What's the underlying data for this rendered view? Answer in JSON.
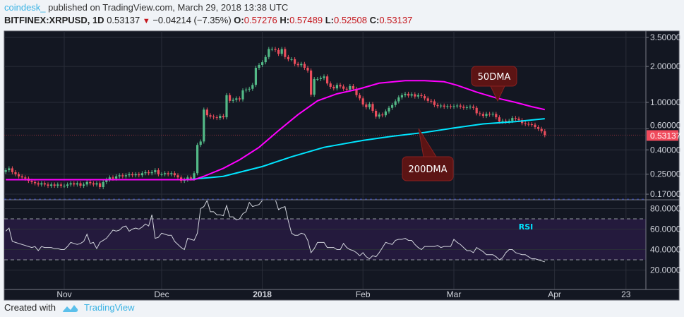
{
  "header": {
    "author": "coindesk_",
    "published": "published on TradingView.com, March 29, 2018 13:38 UTC",
    "symbol": "BITFINEX:XRPUSD, 1D",
    "last": "0.53137",
    "change": "−0.04214 (−7.35%)",
    "o_label": "O:",
    "o": "0.57276",
    "h_label": "H:",
    "h": "0.57489",
    "l_label": "L:",
    "l": "0.52508",
    "c_label": "C:",
    "c": "0.53137"
  },
  "footer": {
    "created_with": "Created with",
    "brand": "TradingView",
    "logo_icon": "tradingview-cloud-icon"
  },
  "colors": {
    "background": "#131722",
    "up": "#53b987",
    "down": "#eb4d5c",
    "ma50": "#ff00ff",
    "ma200": "#00e5ff",
    "rsi": "#d1d4dc",
    "rsi_band": "#241a3d",
    "annotation": "#5c1414",
    "last_price": "#f04a5c"
  },
  "chart_data": {
    "type": "candlestick",
    "price_scale": "log",
    "price_ticks": [
      "3.50000",
      "2.00000",
      "1.00000",
      "0.60000",
      "0.40000",
      "0.25000",
      "0.17000"
    ],
    "last_price_label": "0.53137",
    "time_ticks": [
      {
        "label": "Nov",
        "date": "2017-11-01",
        "bold": false
      },
      {
        "label": "Dec",
        "date": "2017-12-01",
        "bold": false
      },
      {
        "label": "2018",
        "date": "2018-01-01",
        "bold": true
      },
      {
        "label": "Feb",
        "date": "2018-02-01",
        "bold": false
      },
      {
        "label": "Mar",
        "date": "2018-03-01",
        "bold": false
      },
      {
        "label": "Apr",
        "date": "2018-04-01",
        "bold": false
      },
      {
        "label": "23",
        "date": "2018-04-23",
        "bold": false
      }
    ],
    "daily": [
      {
        "month": "2017-10",
        "first_day": 14,
        "close": [
          0.27,
          0.28,
          0.26,
          0.25,
          0.24,
          0.235,
          0.23,
          0.22,
          0.215,
          0.21,
          0.205,
          0.21,
          0.205,
          0.2,
          0.205,
          0.2,
          0.205,
          0.2
        ],
        "rsi": [
          58,
          61,
          48,
          47,
          46,
          45,
          44,
          43,
          42,
          43,
          39,
          43,
          42,
          42,
          42,
          41,
          41,
          40
        ]
      },
      {
        "month": "2017-11",
        "first_day": 1,
        "close": [
          0.2,
          0.205,
          0.21,
          0.205,
          0.21,
          0.2,
          0.205,
          0.215,
          0.21,
          0.205,
          0.21,
          0.195,
          0.215,
          0.225,
          0.235,
          0.23,
          0.24,
          0.245,
          0.24,
          0.245,
          0.25,
          0.245,
          0.25,
          0.245,
          0.255,
          0.26,
          0.255,
          0.26,
          0.27,
          0.25
        ],
        "rsi": [
          40,
          43,
          47,
          46,
          45,
          46,
          48,
          55,
          46,
          47,
          41,
          47,
          49,
          51,
          55,
          59,
          58,
          59,
          62,
          63,
          58,
          60,
          61,
          60,
          62,
          65,
          63,
          74,
          51,
          52
        ]
      },
      {
        "month": "2017-12",
        "first_day": 1,
        "close": [
          0.25,
          0.255,
          0.25,
          0.255,
          0.245,
          0.235,
          0.22,
          0.225,
          0.235,
          0.23,
          0.255,
          0.44,
          0.47,
          0.87,
          0.78,
          0.76,
          0.75,
          0.74,
          0.77,
          0.75,
          1.15,
          1.03,
          1.05,
          1.08,
          1.06,
          1.26,
          1.28,
          1.3,
          1.4,
          1.95,
          2.06
        ],
        "rsi": [
          56,
          55,
          54,
          54,
          48,
          45,
          42,
          40,
          51,
          50,
          49,
          56,
          80,
          82,
          88,
          77,
          77,
          74,
          74,
          73,
          83,
          72,
          72,
          69,
          70,
          75,
          77,
          86,
          82,
          83,
          84
        ]
      },
      {
        "month": "2018-01",
        "first_day": 1,
        "close": [
          2.17,
          2.4,
          2.8,
          2.8,
          2.75,
          2.55,
          2.8,
          2.4,
          2.3,
          2.3,
          2.1,
          2.05,
          2.1,
          1.95,
          1.85,
          1.16,
          1.57,
          1.57,
          1.6,
          1.65,
          1.44,
          1.35,
          1.31,
          1.4,
          1.36,
          1.3,
          1.28,
          1.37,
          1.3,
          1.15,
          1.08
        ],
        "rsi": [
          88,
          89,
          90,
          90,
          89,
          79,
          81,
          82,
          68,
          56,
          54,
          54,
          56,
          55,
          49,
          37,
          41,
          47,
          47,
          47,
          42,
          42,
          42,
          40,
          40,
          46,
          42,
          40,
          39,
          37,
          34
        ]
      },
      {
        "month": "2018-02",
        "first_day": 1,
        "close": [
          0.96,
          0.91,
          0.97,
          0.85,
          0.76,
          0.79,
          0.78,
          0.84,
          0.9,
          0.95,
          1.02,
          1.1,
          1.15,
          1.18,
          1.14,
          1.17,
          1.12,
          1.15,
          1.13,
          1.08,
          1.03,
          1.02,
          0.95,
          0.93,
          0.94,
          0.92,
          0.93,
          0.92
        ],
        "rsi": [
          37,
          33,
          31,
          34,
          33,
          37,
          42,
          47,
          46,
          45,
          49,
          50,
          50,
          51,
          49,
          49,
          45,
          42,
          40,
          43,
          43,
          43,
          43,
          44,
          42,
          43,
          43,
          43
        ]
      },
      {
        "month": "2018-03",
        "first_day": 1,
        "close": [
          0.93,
          0.94,
          0.92,
          0.9,
          0.91,
          0.92,
          0.9,
          0.81,
          0.8,
          0.77,
          0.8,
          0.79,
          0.8,
          0.75,
          0.69,
          0.7,
          0.69,
          0.7,
          0.74,
          0.73,
          0.71,
          0.67,
          0.66,
          0.655,
          0.65,
          0.62,
          0.6,
          0.573,
          0.531
        ],
        "rsi": [
          50,
          47,
          45,
          42,
          39,
          39,
          37,
          42,
          40,
          38,
          35,
          35,
          35,
          33,
          30,
          32,
          37,
          40,
          40,
          37,
          36,
          35,
          35,
          33,
          31,
          31,
          30,
          29,
          28
        ]
      }
    ],
    "ma50": [
      [
        "2017-10-14",
        0.225
      ],
      [
        "2017-12-11",
        0.225
      ],
      [
        "2017-12-14",
        0.24
      ],
      [
        "2017-12-20",
        0.28
      ],
      [
        "2017-12-25",
        0.33
      ],
      [
        "2017-12-31",
        0.42
      ],
      [
        "2018-01-06",
        0.58
      ],
      [
        "2018-01-12",
        0.79
      ],
      [
        "2018-01-18",
        1.03
      ],
      [
        "2018-01-24",
        1.18
      ],
      [
        "2018-01-31",
        1.3
      ],
      [
        "2018-02-06",
        1.45
      ],
      [
        "2018-02-14",
        1.52
      ],
      [
        "2018-02-20",
        1.52
      ],
      [
        "2018-02-26",
        1.49
      ],
      [
        "2018-03-02",
        1.39
      ],
      [
        "2018-03-08",
        1.22
      ],
      [
        "2018-03-14",
        1.09
      ],
      [
        "2018-03-20",
        1.0
      ],
      [
        "2018-03-25",
        0.92
      ],
      [
        "2018-03-29",
        0.87
      ]
    ],
    "ma200": [
      [
        "2017-12-09",
        0.225
      ],
      [
        "2017-12-20",
        0.24
      ],
      [
        "2018-01-01",
        0.29
      ],
      [
        "2018-01-10",
        0.35
      ],
      [
        "2018-01-20",
        0.42
      ],
      [
        "2018-02-01",
        0.48
      ],
      [
        "2018-02-10",
        0.52
      ],
      [
        "2018-02-20",
        0.56
      ],
      [
        "2018-03-01",
        0.61
      ],
      [
        "2018-03-10",
        0.66
      ],
      [
        "2018-03-20",
        0.69
      ],
      [
        "2018-03-29",
        0.73
      ]
    ],
    "rsi_ticks": [
      "80.0000",
      "60.0000",
      "40.0000",
      "20.0000"
    ],
    "rsi_levels": [
      70,
      30
    ],
    "rsi_label": "RSI",
    "annotations": [
      {
        "text": "50DMA",
        "target_date": "2018-03-19",
        "target_series": "ma50"
      },
      {
        "text": "200DMA",
        "target_date": "2018-02-17",
        "target_series": "ma200"
      }
    ]
  }
}
